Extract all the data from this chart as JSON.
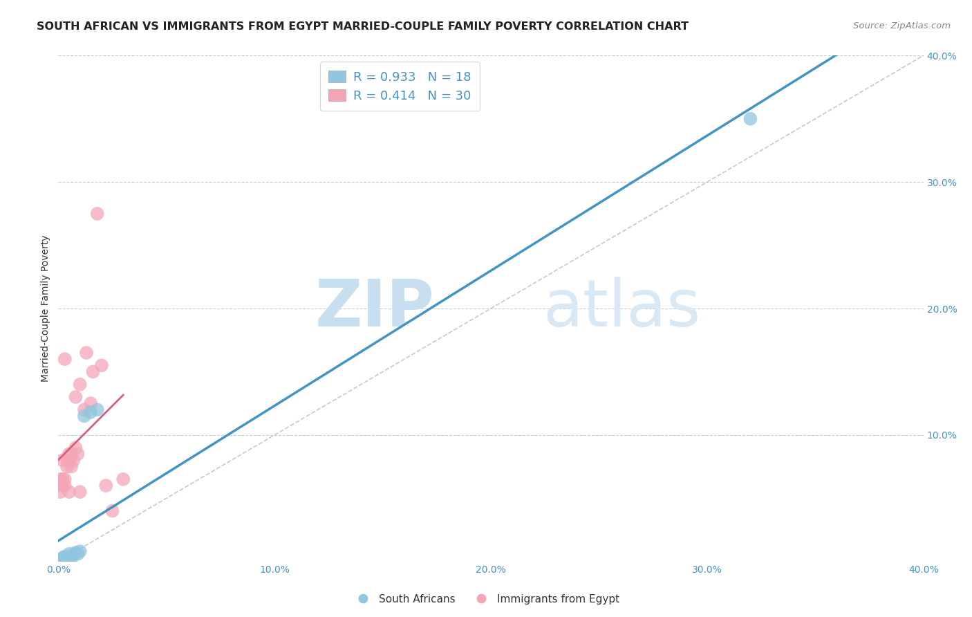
{
  "title": "SOUTH AFRICAN VS IMMIGRANTS FROM EGYPT MARRIED-COUPLE FAMILY POVERTY CORRELATION CHART",
  "source": "Source: ZipAtlas.com",
  "ylabel": "Married-Couple Family Poverty",
  "xlim": [
    0.0,
    0.4
  ],
  "ylim": [
    0.0,
    0.4
  ],
  "xticks": [
    0.0,
    0.1,
    0.2,
    0.3,
    0.4
  ],
  "yticks": [
    0.1,
    0.2,
    0.3,
    0.4
  ],
  "xticklabels": [
    "0.0%",
    "10.0%",
    "20.0%",
    "30.0%",
    "40.0%"
  ],
  "yticklabels": [
    "10.0%",
    "20.0%",
    "30.0%",
    "40.0%"
  ],
  "blue_scatter_color": "#92c5de",
  "pink_scatter_color": "#f4a6b8",
  "blue_line_color": "#4393c3",
  "pink_line_color": "#d6607a",
  "diagonal_color": "#bbbbbb",
  "watermark_zip": "ZIP",
  "watermark_atlas": "atlas",
  "legend_blue_R": "0.933",
  "legend_blue_N": "18",
  "legend_pink_R": "0.414",
  "legend_pink_N": "30",
  "sa_x": [
    0.001,
    0.002,
    0.002,
    0.003,
    0.003,
    0.004,
    0.004,
    0.005,
    0.005,
    0.006,
    0.007,
    0.008,
    0.009,
    0.01,
    0.012,
    0.015,
    0.018,
    0.32
  ],
  "sa_y": [
    0.001,
    0.002,
    0.003,
    0.001,
    0.004,
    0.002,
    0.003,
    0.004,
    0.006,
    0.003,
    0.005,
    0.007,
    0.006,
    0.008,
    0.115,
    0.118,
    0.12,
    0.35
  ],
  "eg_x": [
    0.001,
    0.001,
    0.002,
    0.002,
    0.002,
    0.003,
    0.003,
    0.003,
    0.004,
    0.004,
    0.005,
    0.005,
    0.005,
    0.006,
    0.006,
    0.007,
    0.008,
    0.008,
    0.009,
    0.01,
    0.01,
    0.012,
    0.013,
    0.015,
    0.016,
    0.018,
    0.02,
    0.022,
    0.025,
    0.03
  ],
  "eg_y": [
    0.055,
    0.065,
    0.06,
    0.065,
    0.08,
    0.06,
    0.065,
    0.16,
    0.075,
    0.08,
    0.055,
    0.08,
    0.085,
    0.075,
    0.085,
    0.08,
    0.09,
    0.13,
    0.085,
    0.055,
    0.14,
    0.12,
    0.165,
    0.125,
    0.15,
    0.275,
    0.155,
    0.06,
    0.04,
    0.065
  ],
  "title_fontsize": 11.5,
  "axis_label_fontsize": 10,
  "tick_fontsize": 10,
  "legend_fontsize": 13,
  "source_fontsize": 9.5
}
